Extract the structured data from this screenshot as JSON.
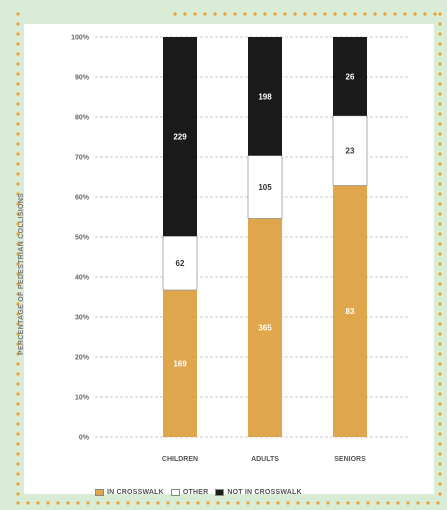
{
  "chart_data": {
    "type": "bar",
    "stacked": true,
    "normalized": true,
    "categories": [
      "CHILDREN",
      "ADULTS",
      "SENIORS"
    ],
    "series": [
      {
        "name": "IN CROSSWALK",
        "values": [
          169,
          365,
          83
        ],
        "color": "#e0a64c"
      },
      {
        "name": "OTHER",
        "values": [
          62,
          105,
          23
        ],
        "color": "#ffffff"
      },
      {
        "name": "NOT IN CROSSWALK",
        "values": [
          229,
          198,
          26
        ],
        "color": "#1a1a1a"
      }
    ],
    "segment_labels": [
      [
        "169",
        "62",
        "229"
      ],
      [
        "365",
        "105",
        "198"
      ],
      [
        "83",
        "23",
        "26"
      ]
    ],
    "ylabel": "PERCENTAGE OF PEDESTRIAN COLLISIONS",
    "xlabel": "",
    "ylim": [
      0,
      100
    ],
    "yticks": [
      "0%",
      "10%",
      "20%",
      "30%",
      "40%",
      "50%",
      "60%",
      "70%",
      "80%",
      "90%",
      "100%"
    ],
    "grid": true,
    "legend_position": "bottom"
  },
  "colors": {
    "panel_background": "#d9ecd6",
    "border_dots": "#f0a030",
    "grid": "#c9c9c9",
    "axis_text": "#666666"
  }
}
